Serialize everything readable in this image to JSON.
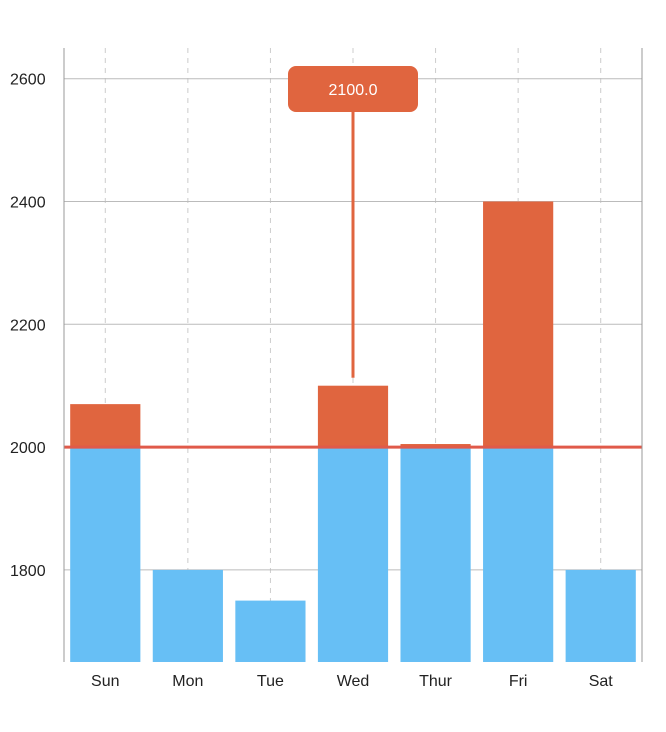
{
  "chart_data": {
    "type": "bar",
    "categories": [
      "Sun",
      "Mon",
      "Tue",
      "Wed",
      "Thur",
      "Fri",
      "Sat"
    ],
    "values": [
      2070,
      1800,
      1750,
      2100,
      2005,
      2400,
      1800
    ],
    "threshold": 2000,
    "ylim": [
      1650,
      2650
    ],
    "yticks": [
      1800,
      2000,
      2200,
      2400,
      2600
    ],
    "grid": {
      "horizontal": true,
      "vertical_dashed": true
    },
    "colors": {
      "below": "#67bff5",
      "above": "#e0653f",
      "threshold_line": "#e05a4a",
      "grid": "#cccccc",
      "tooltip_bg": "#e0653f"
    },
    "tooltip": {
      "category": "Wed",
      "text": "2100.0"
    }
  }
}
